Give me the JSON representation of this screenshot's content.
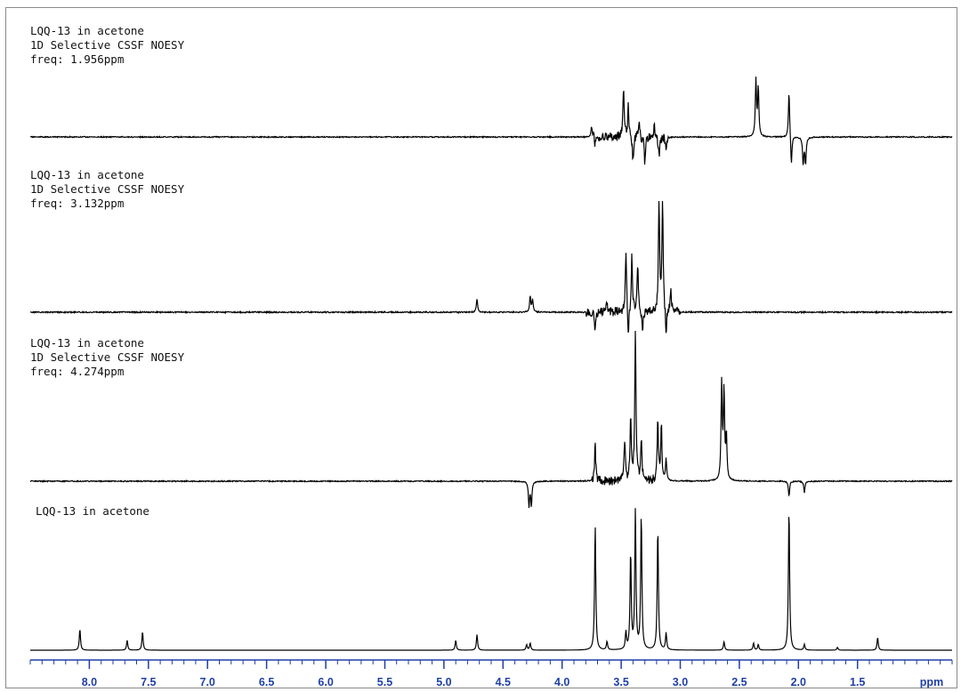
{
  "chart_data": {
    "type": "line",
    "xlabel": "ppm",
    "xlim": [
      8.5,
      0.7
    ],
    "x_ticks": [
      "8.0",
      "7.5",
      "7.0",
      "6.5",
      "6.0",
      "5.5",
      "5.0",
      "4.5",
      "4.0",
      "3.5",
      "3.0",
      "2.5",
      "2.0",
      "1.5"
    ],
    "x_tick_values": [
      8.0,
      7.5,
      7.0,
      6.5,
      6.0,
      5.5,
      5.0,
      4.5,
      4.0,
      3.5,
      3.0,
      2.5,
      2.0,
      1.5
    ],
    "colors": {
      "trace": "#000000",
      "axis": "#1f3fa8"
    },
    "panels": [
      {
        "sample": "LQQ-13 in acetone",
        "experiment": "1D Selective CSSF NOESY",
        "freq": "freq: 1.956ppm",
        "noise_range": [
          3.75,
          3.1
        ],
        "peaks": [
          {
            "ppm": 3.75,
            "height": 0.25
          },
          {
            "ppm": 3.72,
            "height": -0.15
          },
          {
            "ppm": 3.48,
            "height": 1.0
          },
          {
            "ppm": 3.44,
            "height": 0.65
          },
          {
            "ppm": 3.4,
            "height": -0.5
          },
          {
            "ppm": 3.35,
            "height": 0.35
          },
          {
            "ppm": 3.3,
            "height": -0.55
          },
          {
            "ppm": 3.22,
            "height": 0.3
          },
          {
            "ppm": 3.18,
            "height": -0.4
          },
          {
            "ppm": 3.12,
            "height": -0.3
          },
          {
            "ppm": 2.36,
            "height": 1.15
          },
          {
            "ppm": 2.34,
            "height": 1.0
          },
          {
            "ppm": 2.08,
            "height": 0.95
          },
          {
            "ppm": 2.06,
            "height": -0.6
          },
          {
            "ppm": 1.96,
            "height": -0.55
          },
          {
            "ppm": 1.94,
            "height": -0.55
          }
        ]
      },
      {
        "sample": "LQQ-13 in acetone",
        "experiment": "1D Selective CSSF NOESY",
        "freq": "freq: 3.132ppm",
        "noise_range": [
          3.8,
          3.0
        ],
        "peaks": [
          {
            "ppm": 4.72,
            "height": 0.15
          },
          {
            "ppm": 4.27,
            "height": 0.18
          },
          {
            "ppm": 4.25,
            "height": 0.14
          },
          {
            "ppm": 3.72,
            "height": -0.2
          },
          {
            "ppm": 3.62,
            "height": 0.12
          },
          {
            "ppm": 3.46,
            "height": 0.7
          },
          {
            "ppm": 3.44,
            "height": -0.3
          },
          {
            "ppm": 3.41,
            "height": 0.62
          },
          {
            "ppm": 3.36,
            "height": 0.55
          },
          {
            "ppm": 3.32,
            "height": -0.25
          },
          {
            "ppm": 3.18,
            "height": 1.3
          },
          {
            "ppm": 3.15,
            "height": 1.3
          },
          {
            "ppm": 3.12,
            "height": -0.3
          },
          {
            "ppm": 3.08,
            "height": 0.28
          }
        ]
      },
      {
        "sample": "LQQ-13 in acetone",
        "experiment": "1D Selective CSSF NOESY",
        "freq": "freq: 4.274ppm",
        "noise_range": [
          3.75,
          3.15
        ],
        "peaks": [
          {
            "ppm": 4.28,
            "height": -0.25
          },
          {
            "ppm": 4.26,
            "height": -0.25
          },
          {
            "ppm": 3.72,
            "height": 0.36
          },
          {
            "ppm": 3.47,
            "height": 0.4
          },
          {
            "ppm": 3.42,
            "height": 0.65
          },
          {
            "ppm": 3.38,
            "height": 1.55
          },
          {
            "ppm": 3.33,
            "height": 0.4
          },
          {
            "ppm": 3.19,
            "height": 0.62
          },
          {
            "ppm": 3.16,
            "height": 0.55
          },
          {
            "ppm": 3.12,
            "height": 0.22
          },
          {
            "ppm": 2.65,
            "height": 0.98
          },
          {
            "ppm": 2.63,
            "height": 0.9
          },
          {
            "ppm": 2.61,
            "height": 0.45
          },
          {
            "ppm": 2.08,
            "height": -0.15
          },
          {
            "ppm": 1.95,
            "height": -0.12
          }
        ]
      },
      {
        "sample": "LQQ-13 in acetone",
        "noise_range": [
          0,
          0
        ],
        "peaks": [
          {
            "ppm": 8.08,
            "height": 0.15
          },
          {
            "ppm": 7.68,
            "height": 0.07
          },
          {
            "ppm": 7.55,
            "height": 0.13
          },
          {
            "ppm": 4.9,
            "height": 0.07
          },
          {
            "ppm": 4.72,
            "height": 0.11
          },
          {
            "ppm": 4.3,
            "height": 0.04
          },
          {
            "ppm": 4.27,
            "height": 0.05
          },
          {
            "ppm": 3.72,
            "height": 0.88
          },
          {
            "ppm": 3.62,
            "height": 0.06
          },
          {
            "ppm": 3.46,
            "height": 0.12
          },
          {
            "ppm": 3.42,
            "height": 0.68
          },
          {
            "ppm": 3.38,
            "height": 0.97
          },
          {
            "ppm": 3.33,
            "height": 0.95
          },
          {
            "ppm": 3.19,
            "height": 0.86
          },
          {
            "ppm": 3.12,
            "height": 0.12
          },
          {
            "ppm": 2.63,
            "height": 0.06
          },
          {
            "ppm": 2.38,
            "height": 0.05
          },
          {
            "ppm": 2.34,
            "height": 0.04
          },
          {
            "ppm": 2.08,
            "height": 1.0
          },
          {
            "ppm": 1.95,
            "height": 0.04
          },
          {
            "ppm": 1.67,
            "height": 0.02
          },
          {
            "ppm": 1.33,
            "height": 0.09
          }
        ]
      }
    ]
  }
}
